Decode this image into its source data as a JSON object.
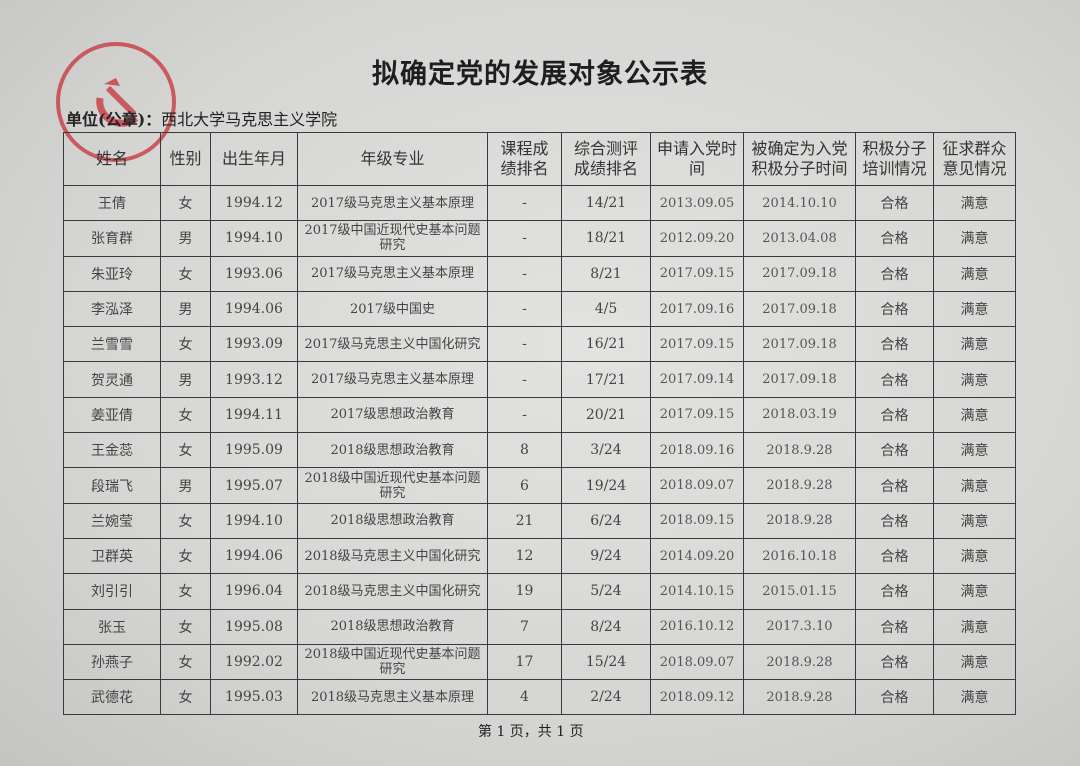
{
  "title": "拟确定党的发展对象公示表",
  "unit_label": "单位(公章)：",
  "unit_name": "西北大学马克思主义学院",
  "stamp": {
    "text": "中共西北大学马克思主义学院委员会",
    "color": "#c8323a"
  },
  "table": {
    "headers": [
      "姓名",
      "性别",
      "出生年月",
      "年级专业",
      "课程成绩排名",
      "综合测评成绩排名",
      "申请入党时间",
      "被确定为入党积极分子时间",
      "积极分子培训情况",
      "征求群众意见情况"
    ],
    "rows": [
      [
        "王倩",
        "女",
        "1994.12",
        "2017级马克思主义基本原理",
        "-",
        "14/21",
        "2013.09.05",
        "2014.10.10",
        "合格",
        "满意"
      ],
      [
        "张育群",
        "男",
        "1994.10",
        "2017级中国近现代史基本问题研究",
        "-",
        "18/21",
        "2012.09.20",
        "2013.04.08",
        "合格",
        "满意"
      ],
      [
        "朱亚玲",
        "女",
        "1993.06",
        "2017级马克思主义基本原理",
        "-",
        "8/21",
        "2017.09.15",
        "2017.09.18",
        "合格",
        "满意"
      ],
      [
        "李泓泽",
        "男",
        "1994.06",
        "2017级中国史",
        "-",
        "4/5",
        "2017.09.16",
        "2017.09.18",
        "合格",
        "满意"
      ],
      [
        "兰雪雪",
        "女",
        "1993.09",
        "2017级马克思主义中国化研究",
        "-",
        "16/21",
        "2017.09.15",
        "2017.09.18",
        "合格",
        "满意"
      ],
      [
        "贺灵通",
        "男",
        "1993.12",
        "2017级马克思主义基本原理",
        "-",
        "17/21",
        "2017.09.14",
        "2017.09.18",
        "合格",
        "满意"
      ],
      [
        "姜亚倩",
        "女",
        "1994.11",
        "2017级思想政治教育",
        "-",
        "20/21",
        "2017.09.15",
        "2018.03.19",
        "合格",
        "满意"
      ],
      [
        "王金蕊",
        "女",
        "1995.09",
        "2018级思想政治教育",
        "8",
        "3/24",
        "2018.09.16",
        "2018.9.28",
        "合格",
        "满意"
      ],
      [
        "段瑞飞",
        "男",
        "1995.07",
        "2018级中国近现代史基本问题研究",
        "6",
        "19/24",
        "2018.09.07",
        "2018.9.28",
        "合格",
        "满意"
      ],
      [
        "兰婉莹",
        "女",
        "1994.10",
        "2018级思想政治教育",
        "21",
        "6/24",
        "2018.09.15",
        "2018.9.28",
        "合格",
        "满意"
      ],
      [
        "卫群英",
        "女",
        "1994.06",
        "2018级马克思主义中国化研究",
        "12",
        "9/24",
        "2014.09.20",
        "2016.10.18",
        "合格",
        "满意"
      ],
      [
        "刘引引",
        "女",
        "1996.04",
        "2018级马克思主义中国化研究",
        "19",
        "5/24",
        "2014.10.15",
        "2015.01.15",
        "合格",
        "满意"
      ],
      [
        "张玉",
        "女",
        "1995.08",
        "2018级思想政治教育",
        "7",
        "8/24",
        "2016.10.12",
        "2017.3.10",
        "合格",
        "满意"
      ],
      [
        "孙燕子",
        "女",
        "1992.02",
        "2018级中国近现代史基本问题研究",
        "17",
        "15/24",
        "2018.09.07",
        "2018.9.28",
        "合格",
        "满意"
      ],
      [
        "武德花",
        "女",
        "1995.03",
        "2018级马克思主义基本原理",
        "4",
        "2/24",
        "2018.09.12",
        "2018.9.28",
        "合格",
        "满意"
      ]
    ]
  },
  "footer": "第 1 页，共 1 页"
}
